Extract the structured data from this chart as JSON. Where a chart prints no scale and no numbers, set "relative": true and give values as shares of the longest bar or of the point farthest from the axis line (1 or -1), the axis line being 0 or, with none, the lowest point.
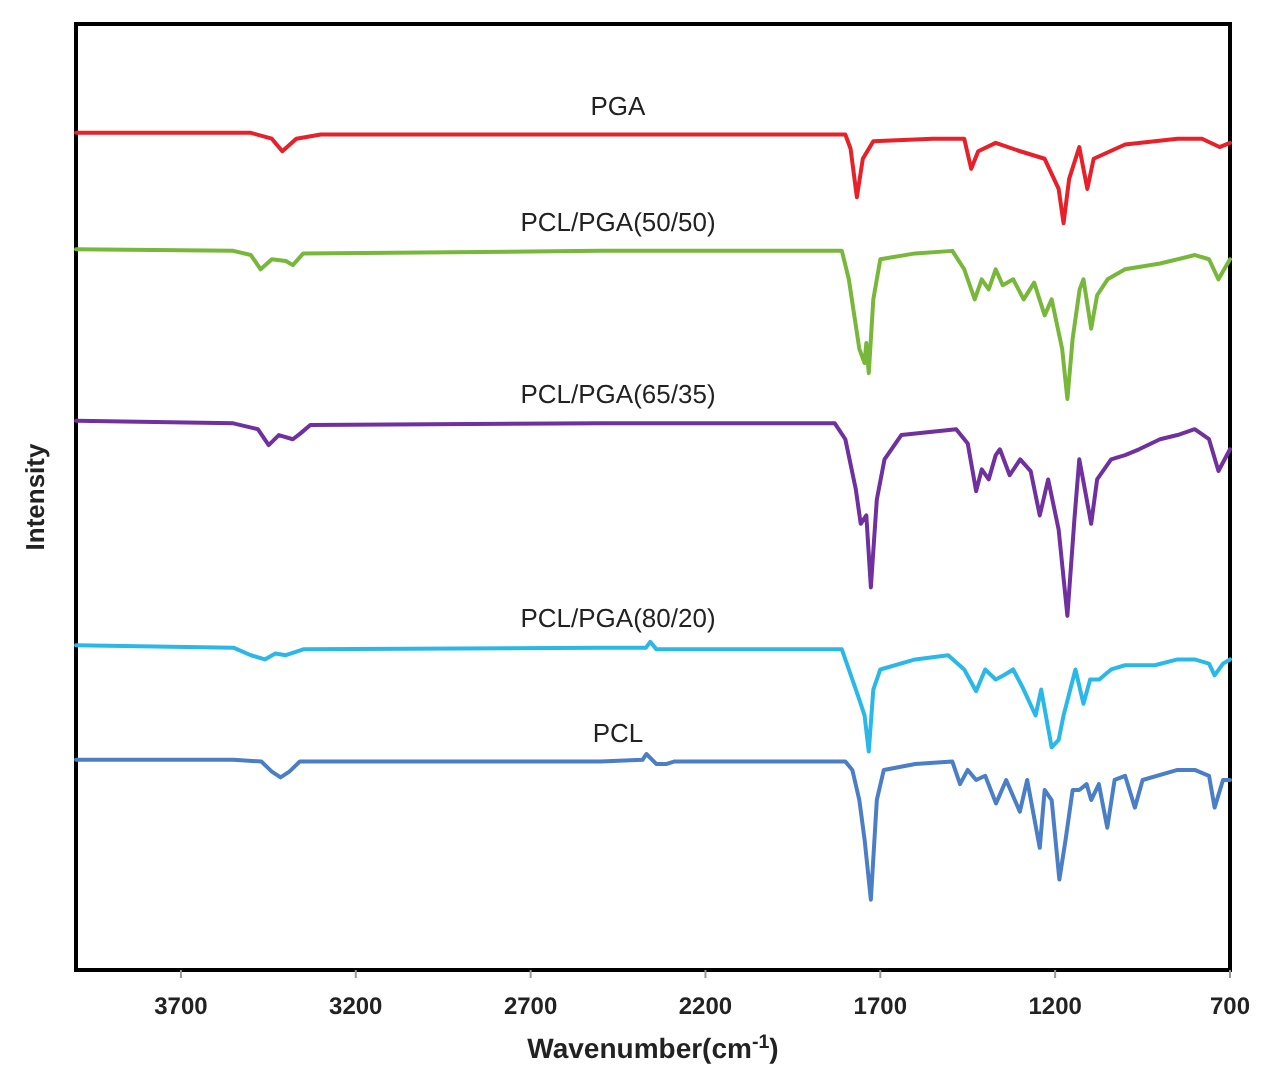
{
  "chart_data": {
    "type": "line",
    "xlabel": "Wavenumber(cm$^{-1}$)",
    "ylabel": "Intensity",
    "relative": true,
    "xlim": [
      4000,
      700
    ],
    "xticks": [
      3700,
      3200,
      2700,
      2200,
      1700,
      1200,
      700
    ],
    "grid": false,
    "marker": "none",
    "line_style": "solid",
    "series": [
      {
        "name": "PGA",
        "color": "#e8202a",
        "x": [
          4000,
          3500,
          3440,
          3410,
          3370,
          3300,
          2500,
          1800,
          1785,
          1767,
          1750,
          1720,
          1550,
          1460,
          1440,
          1420,
          1370,
          1300,
          1230,
          1190,
          1176,
          1160,
          1131,
          1108,
          1090,
          1000,
          850,
          780,
          730,
          700
        ],
        "values": [
          1.0,
          1.0,
          0.993,
          0.978,
          0.993,
          0.998,
          0.998,
          0.998,
          0.981,
          0.923,
          0.969,
          0.99,
          0.993,
          0.993,
          0.957,
          0.978,
          0.988,
          0.978,
          0.969,
          0.933,
          0.892,
          0.945,
          0.983,
          0.933,
          0.969,
          0.986,
          0.993,
          0.993,
          0.983,
          0.988
        ]
      },
      {
        "name": "PCL/PGA(50/50)",
        "color": "#77b83a",
        "x": [
          4000,
          3550,
          3500,
          3472,
          3440,
          3400,
          3380,
          3350,
          2500,
          1810,
          1790,
          1760,
          1745,
          1740,
          1733,
          1720,
          1700,
          1600,
          1494,
          1460,
          1430,
          1410,
          1390,
          1370,
          1350,
          1320,
          1290,
          1260,
          1230,
          1210,
          1180,
          1165,
          1150,
          1130,
          1119,
          1097,
          1080,
          1050,
          1000,
          900,
          800,
          760,
          733,
          700
        ],
        "values": [
          0.861,
          0.859,
          0.854,
          0.837,
          0.849,
          0.847,
          0.842,
          0.856,
          0.859,
          0.859,
          0.825,
          0.742,
          0.725,
          0.749,
          0.713,
          0.801,
          0.849,
          0.856,
          0.859,
          0.837,
          0.801,
          0.825,
          0.813,
          0.837,
          0.818,
          0.825,
          0.801,
          0.821,
          0.782,
          0.801,
          0.742,
          0.682,
          0.754,
          0.813,
          0.825,
          0.766,
          0.806,
          0.825,
          0.837,
          0.844,
          0.854,
          0.849,
          0.825,
          0.849
        ]
      },
      {
        "name": "PCL/PGA(65/35)",
        "color": "#7030a0",
        "x": [
          4000,
          3550,
          3480,
          3449,
          3420,
          3380,
          3358,
          3330,
          2500,
          1830,
          1800,
          1770,
          1756,
          1740,
          1727,
          1710,
          1688,
          1640,
          1483,
          1450,
          1426,
          1410,
          1390,
          1370,
          1358,
          1330,
          1300,
          1270,
          1244,
          1220,
          1190,
          1165,
          1145,
          1131,
          1115,
          1097,
          1080,
          1040,
          1000,
          960,
          900,
          850,
          801,
          760,
          733,
          700
        ],
        "values": [
          0.656,
          0.653,
          0.646,
          0.627,
          0.639,
          0.634,
          0.641,
          0.651,
          0.653,
          0.653,
          0.634,
          0.574,
          0.533,
          0.543,
          0.457,
          0.562,
          0.61,
          0.639,
          0.646,
          0.629,
          0.572,
          0.598,
          0.586,
          0.615,
          0.622,
          0.591,
          0.61,
          0.596,
          0.543,
          0.586,
          0.526,
          0.423,
          0.538,
          0.61,
          0.574,
          0.533,
          0.586,
          0.61,
          0.615,
          0.622,
          0.634,
          0.639,
          0.646,
          0.634,
          0.596,
          0.622
        ]
      },
      {
        "name": "PCL/PGA(80/20)",
        "color": "#2ab8e8",
        "x": [
          4000,
          3550,
          3500,
          3460,
          3430,
          3400,
          3350,
          2500,
          2370,
          2358,
          2340,
          1810,
          1790,
          1760,
          1745,
          1733,
          1720,
          1700,
          1600,
          1506,
          1460,
          1426,
          1400,
          1370,
          1347,
          1320,
          1290,
          1256,
          1240,
          1210,
          1190,
          1176,
          1142,
          1119,
          1100,
          1074,
          1040,
          1000,
          915,
          850,
          801,
          760,
          744,
          720,
          700
        ],
        "values": [
          0.388,
          0.385,
          0.376,
          0.371,
          0.378,
          0.376,
          0.383,
          0.385,
          0.385,
          0.392,
          0.383,
          0.383,
          0.359,
          0.323,
          0.304,
          0.261,
          0.335,
          0.359,
          0.371,
          0.376,
          0.359,
          0.333,
          0.359,
          0.347,
          0.352,
          0.359,
          0.335,
          0.304,
          0.335,
          0.266,
          0.275,
          0.304,
          0.359,
          0.318,
          0.347,
          0.347,
          0.359,
          0.364,
          0.364,
          0.371,
          0.371,
          0.366,
          0.352,
          0.366,
          0.371
        ]
      },
      {
        "name": "PCL",
        "color": "#4a7fc8",
        "x": [
          4000,
          3550,
          3470,
          3440,
          3415,
          3390,
          3360,
          2500,
          2380,
          2369,
          2340,
          2313,
          2290,
          1800,
          1780,
          1760,
          1745,
          1727,
          1710,
          1690,
          1600,
          1494,
          1472,
          1450,
          1426,
          1400,
          1369,
          1340,
          1301,
          1280,
          1244,
          1230,
          1210,
          1188,
          1170,
          1150,
          1131,
          1110,
          1097,
          1075,
          1051,
          1030,
          1000,
          972,
          950,
          850,
          801,
          760,
          744,
          720,
          700
        ],
        "values": [
          0.251,
          0.251,
          0.249,
          0.237,
          0.23,
          0.237,
          0.249,
          0.249,
          0.251,
          0.258,
          0.246,
          0.246,
          0.249,
          0.249,
          0.239,
          0.203,
          0.156,
          0.084,
          0.203,
          0.239,
          0.246,
          0.249,
          0.222,
          0.239,
          0.227,
          0.232,
          0.199,
          0.227,
          0.189,
          0.227,
          0.146,
          0.215,
          0.203,
          0.108,
          0.156,
          0.215,
          0.215,
          0.222,
          0.203,
          0.222,
          0.17,
          0.227,
          0.232,
          0.194,
          0.227,
          0.239,
          0.239,
          0.232,
          0.194,
          0.227,
          0.227
        ]
      }
    ]
  }
}
